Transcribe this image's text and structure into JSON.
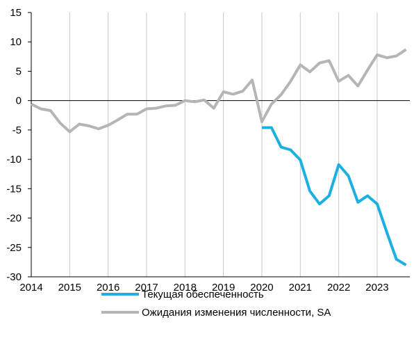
{
  "chart_data": {
    "type": "line",
    "title": "",
    "xlabel": "",
    "ylabel": "",
    "xlim": [
      2014,
      2023.85
    ],
    "ylim": [
      -30,
      15
    ],
    "y_ticks": [
      15,
      10,
      5,
      0,
      -5,
      -10,
      -15,
      -20,
      -25,
      -30
    ],
    "x_tick_labels": [
      "2014",
      "2015",
      "2016",
      "2017",
      "2018",
      "2019",
      "2020",
      "2021",
      "2022",
      "2023"
    ],
    "grid": "vertical",
    "legend_position": "bottom",
    "series": [
      {
        "name": "Текущая обеспеченность",
        "color": "#1ab0e2",
        "x": [
          2020.0,
          2020.25,
          2020.5,
          2020.75,
          2021.0,
          2021.25,
          2021.5,
          2021.75,
          2022.0,
          2022.25,
          2022.5,
          2022.75,
          2023.0,
          2023.25,
          2023.5,
          2023.75
        ],
        "values": [
          -4.6,
          -4.6,
          -7.9,
          -8.4,
          -10.1,
          -15.4,
          -17.6,
          -16.2,
          -10.9,
          -12.8,
          -17.3,
          -16.2,
          -17.6,
          -22.4,
          -27.0,
          -28.0
        ]
      },
      {
        "name": "Ожидания изменения численности, SA",
        "color": "#b5b5b5",
        "x": [
          2014.0,
          2014.25,
          2014.5,
          2014.75,
          2015.0,
          2015.25,
          2015.5,
          2015.75,
          2016.0,
          2016.25,
          2016.5,
          2016.75,
          2017.0,
          2017.25,
          2017.5,
          2017.75,
          2018.0,
          2018.25,
          2018.5,
          2018.75,
          2019.0,
          2019.25,
          2019.5,
          2019.75,
          2020.0,
          2020.25,
          2020.5,
          2020.75,
          2021.0,
          2021.25,
          2021.5,
          2021.75,
          2022.0,
          2022.25,
          2022.5,
          2022.75,
          2023.0,
          2023.25,
          2023.5,
          2023.75
        ],
        "values": [
          -0.6,
          -1.4,
          -1.7,
          -3.8,
          -5.3,
          -4.0,
          -4.3,
          -4.8,
          -4.2,
          -3.3,
          -2.3,
          -2.3,
          -1.4,
          -1.3,
          -0.9,
          -0.8,
          0.0,
          -0.2,
          0.1,
          -1.3,
          1.5,
          1.1,
          1.6,
          3.5,
          -3.6,
          -0.6,
          1.0,
          3.3,
          6.1,
          4.9,
          6.4,
          6.8,
          3.3,
          4.3,
          2.5,
          5.2,
          7.8,
          7.3,
          7.6,
          8.7
        ]
      }
    ]
  }
}
